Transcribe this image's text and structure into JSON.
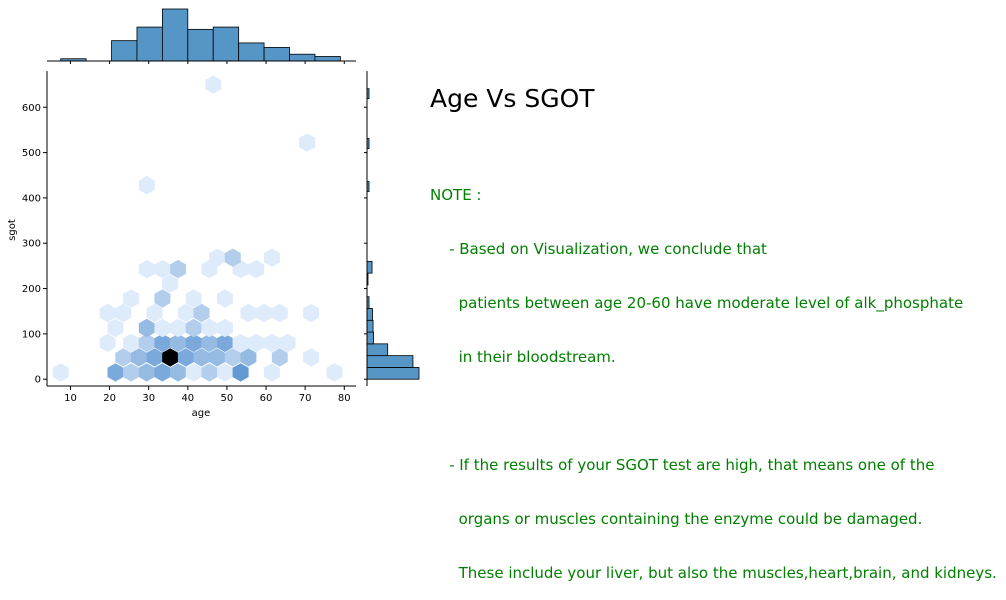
{
  "chart_data": {
    "type": "hexbin-joint",
    "xlabel": "age",
    "ylabel": "sgot",
    "xlim": [
      4,
      83
    ],
    "ylim": [
      -15,
      680
    ],
    "xticks": [
      10,
      20,
      30,
      40,
      50,
      60,
      70,
      80
    ],
    "yticks": [
      0,
      100,
      200,
      300,
      400,
      500,
      600
    ],
    "color": "#1f77b4",
    "hexbins": [
      {
        "age": 7.5,
        "sgot": 15,
        "count": 1
      },
      {
        "age": 21.5,
        "sgot": 15,
        "count": 4
      },
      {
        "age": 25.5,
        "sgot": 15,
        "count": 2
      },
      {
        "age": 29.5,
        "sgot": 15,
        "count": 3
      },
      {
        "age": 33.5,
        "sgot": 15,
        "count": 4
      },
      {
        "age": 37.5,
        "sgot": 15,
        "count": 3
      },
      {
        "age": 41.5,
        "sgot": 15,
        "count": 1
      },
      {
        "age": 45.5,
        "sgot": 15,
        "count": 2
      },
      {
        "age": 49.5,
        "sgot": 15,
        "count": 1
      },
      {
        "age": 53.5,
        "sgot": 15,
        "count": 5
      },
      {
        "age": 61.5,
        "sgot": 15,
        "count": 1
      },
      {
        "age": 77.5,
        "sgot": 15,
        "count": 1
      },
      {
        "age": 23.5,
        "sgot": 48,
        "count": 2
      },
      {
        "age": 27.5,
        "sgot": 48,
        "count": 3
      },
      {
        "age": 31.5,
        "sgot": 48,
        "count": 4
      },
      {
        "age": 35.5,
        "sgot": 48,
        "count": 9
      },
      {
        "age": 39.5,
        "sgot": 48,
        "count": 4
      },
      {
        "age": 43.5,
        "sgot": 48,
        "count": 3
      },
      {
        "age": 47.5,
        "sgot": 48,
        "count": 3
      },
      {
        "age": 51.5,
        "sgot": 48,
        "count": 2
      },
      {
        "age": 55.5,
        "sgot": 48,
        "count": 3
      },
      {
        "age": 63.5,
        "sgot": 48,
        "count": 2
      },
      {
        "age": 71.5,
        "sgot": 48,
        "count": 1
      },
      {
        "age": 25.5,
        "sgot": 80,
        "count": 1
      },
      {
        "age": 29.5,
        "sgot": 80,
        "count": 2
      },
      {
        "age": 33.5,
        "sgot": 80,
        "count": 4
      },
      {
        "age": 37.5,
        "sgot": 80,
        "count": 3
      },
      {
        "age": 41.5,
        "sgot": 80,
        "count": 4
      },
      {
        "age": 45.5,
        "sgot": 80,
        "count": 3
      },
      {
        "age": 49.5,
        "sgot": 80,
        "count": 4
      },
      {
        "age": 53.5,
        "sgot": 80,
        "count": 1
      },
      {
        "age": 57.5,
        "sgot": 80,
        "count": 1
      },
      {
        "age": 61.5,
        "sgot": 80,
        "count": 1
      },
      {
        "age": 65.5,
        "sgot": 80,
        "count": 1
      },
      {
        "age": 19.5,
        "sgot": 80,
        "count": 1
      },
      {
        "age": 21.5,
        "sgot": 113,
        "count": 1
      },
      {
        "age": 29.5,
        "sgot": 113,
        "count": 3
      },
      {
        "age": 33.5,
        "sgot": 113,
        "count": 1
      },
      {
        "age": 37.5,
        "sgot": 113,
        "count": 1
      },
      {
        "age": 41.5,
        "sgot": 113,
        "count": 2
      },
      {
        "age": 45.5,
        "sgot": 113,
        "count": 1
      },
      {
        "age": 49.5,
        "sgot": 113,
        "count": 1
      },
      {
        "age": 19.5,
        "sgot": 146,
        "count": 1
      },
      {
        "age": 23.5,
        "sgot": 146,
        "count": 1
      },
      {
        "age": 31.5,
        "sgot": 146,
        "count": 1
      },
      {
        "age": 39.5,
        "sgot": 146,
        "count": 1
      },
      {
        "age": 43.5,
        "sgot": 146,
        "count": 2
      },
      {
        "age": 55.5,
        "sgot": 146,
        "count": 1
      },
      {
        "age": 59.5,
        "sgot": 146,
        "count": 1
      },
      {
        "age": 63.5,
        "sgot": 146,
        "count": 1
      },
      {
        "age": 71.5,
        "sgot": 146,
        "count": 1
      },
      {
        "age": 25.5,
        "sgot": 178,
        "count": 1
      },
      {
        "age": 33.5,
        "sgot": 178,
        "count": 2
      },
      {
        "age": 41.5,
        "sgot": 178,
        "count": 1
      },
      {
        "age": 49.5,
        "sgot": 178,
        "count": 1
      },
      {
        "age": 35.5,
        "sgot": 211,
        "count": 1
      },
      {
        "age": 29.5,
        "sgot": 243,
        "count": 1
      },
      {
        "age": 33.5,
        "sgot": 243,
        "count": 1
      },
      {
        "age": 37.5,
        "sgot": 243,
        "count": 2
      },
      {
        "age": 45.5,
        "sgot": 243,
        "count": 1
      },
      {
        "age": 53.5,
        "sgot": 243,
        "count": 1
      },
      {
        "age": 57.5,
        "sgot": 243,
        "count": 1
      },
      {
        "age": 47.5,
        "sgot": 268,
        "count": 1
      },
      {
        "age": 51.5,
        "sgot": 268,
        "count": 2
      },
      {
        "age": 61.5,
        "sgot": 268,
        "count": 1
      },
      {
        "age": 29.5,
        "sgot": 428,
        "count": 1
      },
      {
        "age": 70.5,
        "sgot": 522,
        "count": 1
      },
      {
        "age": 46.5,
        "sgot": 650,
        "count": 1
      }
    ],
    "age_histogram": {
      "bin_edges": [
        7.5,
        14.0,
        20.5,
        27.0,
        33.5,
        40.0,
        46.5,
        53.0,
        59.5,
        66.0,
        72.5,
        79.0
      ],
      "counts": [
        1,
        0,
        9,
        15,
        23,
        14,
        15,
        8,
        6,
        3,
        2
      ]
    },
    "sgot_histogram": {
      "bin_edges": [
        0,
        26,
        52,
        78,
        104,
        130,
        156,
        182,
        208,
        234,
        260,
        286
      ],
      "counts": [
        103,
        91,
        41,
        13,
        12,
        11,
        4,
        0,
        2,
        10,
        0
      ],
      "outliers": [
        {
          "sgot": 425,
          "count": 1
        },
        {
          "sgot": 520,
          "count": 1
        },
        {
          "sgot": 630,
          "count": 1
        }
      ]
    }
  },
  "note": {
    "title": "Age Vs SGOT",
    "heading": "NOTE :",
    "lines": [
      "    - Based on Visualization, we conclude that",
      "      patients between age 20-60 have moderate level of alk_phosphate",
      "      in their bloodstream.",
      "",
      "    - If the results of your SGOT test are high, that means one of the",
      "      organs or muscles containing the enzyme could be damaged.",
      "      These include your liver, but also the muscles,heart,brain, and kidneys."
    ]
  }
}
